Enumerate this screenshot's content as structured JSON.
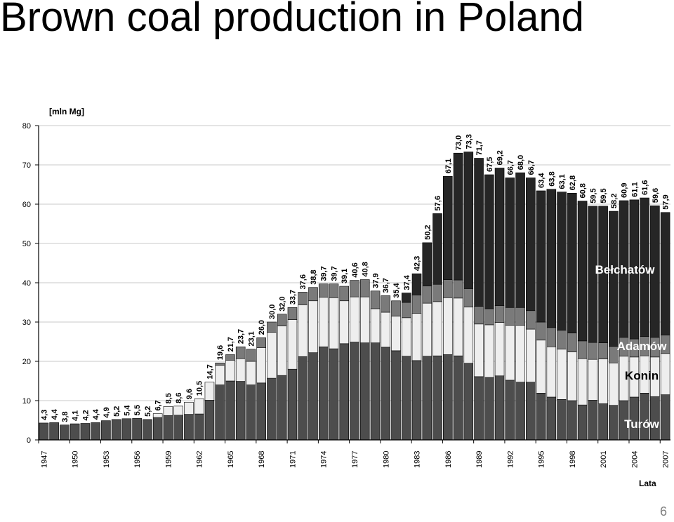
{
  "slide": {
    "title": "Brown coal production in Poland",
    "page_number": "6"
  },
  "chart_data": {
    "type": "bar",
    "stacked": true,
    "yunit": "[mln Mg]",
    "xlabel": "Lata",
    "ylim": [
      0,
      80
    ],
    "yticks": [
      "0",
      "10",
      "20",
      "30",
      "40",
      "50",
      "60",
      "70",
      "80"
    ],
    "grid": true,
    "categories": [
      1947,
      1948,
      1949,
      1950,
      1951,
      1952,
      1953,
      1954,
      1955,
      1956,
      1957,
      1958,
      1959,
      1960,
      1961,
      1962,
      1963,
      1964,
      1965,
      1966,
      1967,
      1968,
      1969,
      1970,
      1971,
      1972,
      1973,
      1974,
      1975,
      1976,
      1977,
      1978,
      1979,
      1980,
      1981,
      1982,
      1983,
      1984,
      1985,
      1986,
      1987,
      1988,
      1989,
      1990,
      1991,
      1992,
      1993,
      1994,
      1995,
      1996,
      1997,
      1998,
      1999,
      2000,
      2001,
      2002,
      2003,
      2004,
      2005,
      2006,
      2007
    ],
    "x_tick_labels": [
      "1947",
      "1950",
      "1953",
      "1956",
      "1959",
      "1962",
      "1965",
      "1968",
      "1971",
      "1974",
      "1977",
      "1980",
      "1983",
      "1986",
      "1989",
      "1992",
      "1995",
      "1998",
      "2001",
      "2004",
      "2007"
    ],
    "totals": [
      4.3,
      4.4,
      3.8,
      4.1,
      4.2,
      4.4,
      4.9,
      5.2,
      5.4,
      5.5,
      5.2,
      6.7,
      8.5,
      8.6,
      9.6,
      10.5,
      14.7,
      19.6,
      21.7,
      23.7,
      23.1,
      26.0,
      30.0,
      32.0,
      33.7,
      37.6,
      38.8,
      39.7,
      39.7,
      39.1,
      40.6,
      40.8,
      37.9,
      36.7,
      35.4,
      37.4,
      42.3,
      50.2,
      57.6,
      67.1,
      73.0,
      73.3,
      71.7,
      67.5,
      69.2,
      66.7,
      68.0,
      66.7,
      63.4,
      63.8,
      63.1,
      62.8,
      60.8,
      59.5,
      59.5,
      58.2,
      60.9,
      61.1,
      61.6,
      59.6,
      57.9
    ],
    "total_labels": [
      "4,3",
      "4,4",
      "3,8",
      "4,1",
      "4,2",
      "4,4",
      "4,9",
      "5,2",
      "5,4",
      "5,5",
      "5,2",
      "6,7",
      "8,5",
      "8,6",
      "9,6",
      "10,5",
      "14,7",
      "19,6",
      "21,7",
      "23,7",
      "23,1",
      "26,0",
      "30,0",
      "32,0",
      "33,7",
      "37,6",
      "38,8",
      "39,7",
      "39,7",
      "39,1",
      "40,6",
      "40,8",
      "37,9",
      "36,7",
      "35,4",
      "37,4",
      "42,3",
      "50,2",
      "57,6",
      "67,1",
      "73,0",
      "73,3",
      "71,7",
      "67,5",
      "69,2",
      "66,7",
      "68,0",
      "66,7",
      "63,4",
      "63,8",
      "63,1",
      "62,8",
      "60,8",
      "59,5",
      "59,5",
      "58,2",
      "60,9",
      "61,1",
      "61,6",
      "59,6",
      "57,9"
    ],
    "series": [
      {
        "name": "Turów",
        "color": "#4d4d4d",
        "values": [
          4.3,
          4.4,
          3.8,
          4.1,
          4.2,
          4.4,
          4.9,
          5.2,
          5.4,
          5.5,
          5.2,
          5.7,
          6.2,
          6.3,
          6.5,
          6.6,
          10.1,
          14.0,
          15.0,
          14.9,
          14.0,
          14.5,
          15.7,
          16.4,
          18.0,
          21.2,
          22.2,
          23.7,
          23.2,
          24.5,
          24.9,
          24.7,
          24.7,
          23.6,
          22.7,
          21.3,
          20.2,
          21.3,
          21.4,
          21.7,
          21.4,
          19.5,
          16.1,
          15.9,
          16.3,
          15.2,
          14.7,
          14.7,
          11.9,
          10.9,
          10.3,
          10.0,
          8.9,
          10.1,
          9.2,
          8.8,
          10.0,
          10.9,
          11.9,
          11.0,
          11.5
        ]
      },
      {
        "name": "Konin",
        "color": "#eeeeee",
        "values": [
          0,
          0,
          0,
          0,
          0,
          0,
          0,
          0,
          0,
          0,
          0,
          1.0,
          2.3,
          2.3,
          3.1,
          3.9,
          4.6,
          5.0,
          5.3,
          5.8,
          6.0,
          9.0,
          11.7,
          12.6,
          12.6,
          13.2,
          13.2,
          12.6,
          13.0,
          10.9,
          11.5,
          11.7,
          8.7,
          8.9,
          8.8,
          9.8,
          12.0,
          13.5,
          13.8,
          14.5,
          14.7,
          14.3,
          13.4,
          13.4,
          13.6,
          14.0,
          14.5,
          13.5,
          13.5,
          12.8,
          12.8,
          12.4,
          11.8,
          10.4,
          11.4,
          10.8,
          11.3,
          10.2,
          9.5,
          10.1,
          10.5
        ]
      },
      {
        "name": "Adamów",
        "color": "#7a7a7a",
        "values": [
          0,
          0,
          0,
          0,
          0,
          0,
          0,
          0,
          0,
          0,
          0,
          0,
          0,
          0,
          0,
          0,
          0,
          0.6,
          1.4,
          3.0,
          3.1,
          2.5,
          2.6,
          3.0,
          3.1,
          3.2,
          3.4,
          3.4,
          3.5,
          3.7,
          4.2,
          4.4,
          4.5,
          4.2,
          3.9,
          3.9,
          4.7,
          4.4,
          4.4,
          4.6,
          4.6,
          4.7,
          4.5,
          4.1,
          4.3,
          4.5,
          4.5,
          4.7,
          4.6,
          4.9,
          4.8,
          4.8,
          4.5,
          4.3,
          4.1,
          4.2,
          4.8,
          4.6,
          4.9,
          5.0,
          4.7
        ]
      },
      {
        "name": "Bełchatów",
        "color": "#262626",
        "values": [
          0,
          0,
          0,
          0,
          0,
          0,
          0,
          0,
          0,
          0,
          0,
          0,
          0,
          0,
          0,
          0,
          0,
          0,
          0,
          0,
          0,
          0,
          0,
          0,
          0,
          0,
          0,
          0,
          0,
          0,
          0,
          0,
          0,
          0,
          0,
          2.4,
          5.4,
          11.0,
          18.0,
          26.3,
          32.3,
          34.8,
          37.7,
          34.1,
          35.0,
          33.0,
          34.3,
          33.8,
          33.4,
          35.2,
          35.2,
          35.6,
          35.6,
          34.7,
          34.8,
          34.4,
          34.8,
          35.4,
          35.3,
          33.5,
          31.2
        ]
      }
    ],
    "series_label_order": [
      "Bełchatów",
      "Adamów",
      "Konin",
      "Turów"
    ]
  }
}
